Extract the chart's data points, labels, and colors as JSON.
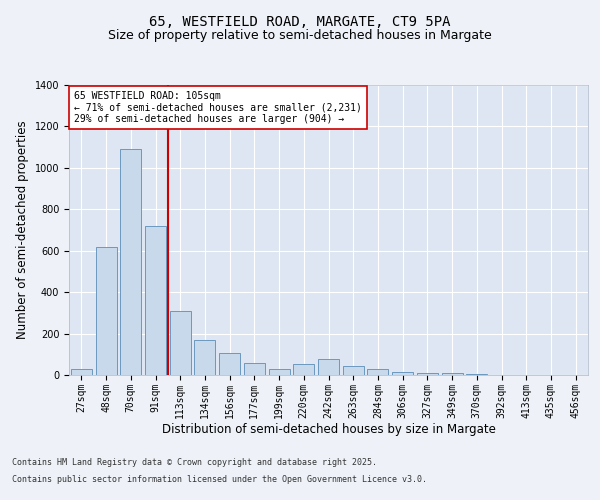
{
  "title_line1": "65, WESTFIELD ROAD, MARGATE, CT9 5PA",
  "title_line2": "Size of property relative to semi-detached houses in Margate",
  "xlabel": "Distribution of semi-detached houses by size in Margate",
  "ylabel": "Number of semi-detached properties",
  "categories": [
    "27sqm",
    "48sqm",
    "70sqm",
    "91sqm",
    "113sqm",
    "134sqm",
    "156sqm",
    "177sqm",
    "199sqm",
    "220sqm",
    "242sqm",
    "263sqm",
    "284sqm",
    "306sqm",
    "327sqm",
    "349sqm",
    "370sqm",
    "392sqm",
    "413sqm",
    "435sqm",
    "456sqm"
  ],
  "values": [
    30,
    620,
    1090,
    720,
    310,
    170,
    105,
    60,
    30,
    55,
    75,
    45,
    30,
    15,
    10,
    8,
    5,
    0,
    0,
    0,
    0
  ],
  "bar_color": "#c9d9ec",
  "bar_edge_color": "#5b8db8",
  "vline_color": "#cc0000",
  "vline_pos": 3.5,
  "annotation_text": "65 WESTFIELD ROAD: 105sqm\n← 71% of semi-detached houses are smaller (2,231)\n29% of semi-detached houses are larger (904) →",
  "annotation_box_color": "#ffffff",
  "annotation_box_edge": "#cc0000",
  "ylim": [
    0,
    1400
  ],
  "yticks": [
    0,
    200,
    400,
    600,
    800,
    1000,
    1200,
    1400
  ],
  "footer_line1": "Contains HM Land Registry data © Crown copyright and database right 2025.",
  "footer_line2": "Contains public sector information licensed under the Open Government Licence v3.0.",
  "bg_color": "#eef2f8",
  "plot_bg_color": "#dde6f2",
  "grid_color": "#ffffff",
  "title_fontsize": 10,
  "subtitle_fontsize": 9,
  "tick_fontsize": 7,
  "label_fontsize": 8.5,
  "footer_fontsize": 6,
  "annot_fontsize": 7
}
